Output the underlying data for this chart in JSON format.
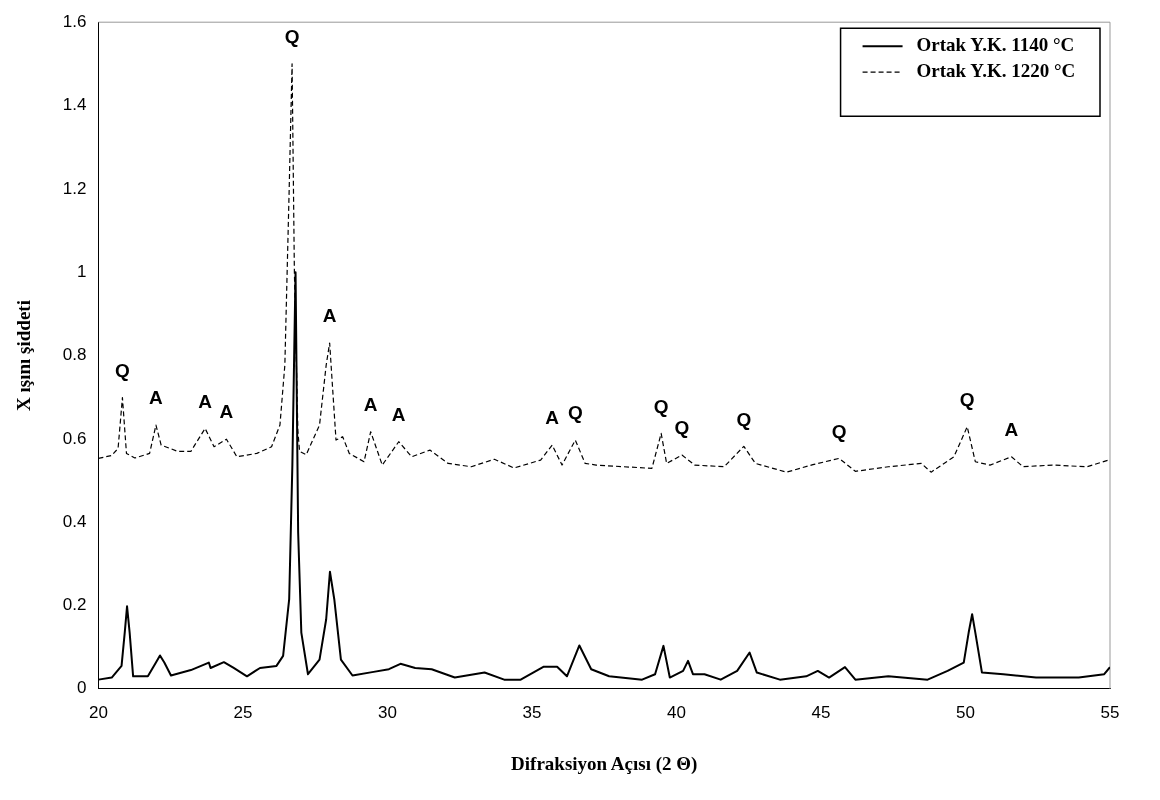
{
  "chart_data": {
    "type": "line",
    "xlabel": "Difraksiyon Açısı (2 Θ)",
    "ylabel": "X ışını şiddeti",
    "xlim": [
      20,
      55
    ],
    "xticks": [
      20,
      25,
      30,
      35,
      40,
      45,
      50,
      55
    ],
    "ylim": [
      0,
      1.6
    ],
    "yticks": [
      0,
      0.2,
      0.4,
      0.6,
      0.8,
      1,
      1.2,
      1.4,
      1.6
    ],
    "grid": false,
    "legend": "top right",
    "marker": "none",
    "series": [
      {
        "name": "Ortak Y.K. 1140 °C",
        "color": "#000000",
        "line_style": "solid",
        "x": [
          20.0,
          20.46,
          20.8,
          20.91,
          20.99,
          21.08,
          21.2,
          21.71,
          21.99,
          22.13,
          22.28,
          22.51,
          23.2,
          23.82,
          23.88,
          24.34,
          24.68,
          25.14,
          25.59,
          26.16,
          26.39,
          26.6,
          26.71,
          26.82,
          26.91,
          27.02,
          27.25,
          27.65,
          27.88,
          28.01,
          28.16,
          28.39,
          28.79,
          29.47,
          30.05,
          30.45,
          30.96,
          31.53,
          32.33,
          33.36,
          34.04,
          34.61,
          35.41,
          35.87,
          36.21,
          36.64,
          37.05,
          37.67,
          38.81,
          39.26,
          39.55,
          39.77,
          40.23,
          40.4,
          40.57,
          40.97,
          41.53,
          42.1,
          42.53,
          42.78,
          43.58,
          44.49,
          44.89,
          45.28,
          45.83,
          46.19,
          47.33,
          48.69,
          49.38,
          49.94,
          50.11,
          50.23,
          50.34,
          50.57,
          51.31,
          52.44,
          53.35,
          53.92,
          54.8,
          55.0
        ],
        "values": [
          0.022,
          0.027,
          0.055,
          0.135,
          0.198,
          0.135,
          0.03,
          0.03,
          0.063,
          0.08,
          0.063,
          0.032,
          0.045,
          0.063,
          0.05,
          0.064,
          0.05,
          0.03,
          0.05,
          0.055,
          0.079,
          0.215,
          0.537,
          1.0,
          0.376,
          0.135,
          0.035,
          0.07,
          0.167,
          0.281,
          0.215,
          0.07,
          0.032,
          0.04,
          0.047,
          0.06,
          0.05,
          0.047,
          0.027,
          0.039,
          0.022,
          0.022,
          0.053,
          0.053,
          0.03,
          0.104,
          0.047,
          0.03,
          0.022,
          0.035,
          0.103,
          0.027,
          0.043,
          0.067,
          0.035,
          0.035,
          0.022,
          0.043,
          0.087,
          0.039,
          0.022,
          0.03,
          0.043,
          0.027,
          0.052,
          0.022,
          0.03,
          0.022,
          0.043,
          0.063,
          0.135,
          0.179,
          0.135,
          0.039,
          0.035,
          0.027,
          0.027,
          0.027,
          0.035,
          0.052
        ]
      },
      {
        "name": "Ortak Y.K. 1220 °C",
        "color": "#000000",
        "line_style": "dashed",
        "x": [
          20.0,
          20.46,
          20.68,
          20.83,
          20.97,
          21.26,
          21.77,
          21.99,
          22.17,
          22.74,
          23.2,
          23.69,
          24.0,
          24.43,
          24.79,
          25.48,
          25.99,
          26.28,
          26.45,
          26.6,
          26.7,
          26.78,
          26.9,
          26.96,
          27.19,
          27.65,
          27.88,
          28.0,
          28.22,
          28.45,
          28.68,
          29.19,
          29.42,
          29.82,
          30.39,
          30.84,
          31.47,
          32.1,
          32.9,
          33.7,
          34.38,
          35.3,
          35.7,
          36.04,
          36.5,
          36.84,
          37.22,
          39.15,
          39.47,
          39.66,
          40.19,
          40.63,
          41.65,
          42.33,
          42.73,
          43.81,
          44.72,
          45.63,
          46.19,
          47.33,
          48.47,
          48.81,
          49.6,
          50.06,
          50.34,
          50.85,
          51.59,
          51.99,
          53.01,
          54.2,
          55.0
        ],
        "values": [
          0.553,
          0.56,
          0.577,
          0.699,
          0.565,
          0.554,
          0.565,
          0.633,
          0.585,
          0.57,
          0.57,
          0.625,
          0.581,
          0.599,
          0.557,
          0.565,
          0.581,
          0.633,
          0.777,
          1.2,
          1.5,
          1.0,
          0.62,
          0.57,
          0.562,
          0.633,
          0.777,
          0.83,
          0.597,
          0.605,
          0.565,
          0.545,
          0.617,
          0.537,
          0.593,
          0.557,
          0.573,
          0.541,
          0.533,
          0.551,
          0.53,
          0.549,
          0.585,
          0.537,
          0.597,
          0.541,
          0.537,
          0.529,
          0.613,
          0.541,
          0.561,
          0.537,
          0.533,
          0.582,
          0.541,
          0.52,
          0.538,
          0.553,
          0.522,
          0.533,
          0.541,
          0.52,
          0.557,
          0.629,
          0.545,
          0.537,
          0.557,
          0.533,
          0.537,
          0.533,
          0.55
        ]
      }
    ],
    "annotations": [
      {
        "text": "Q",
        "x": 20.83,
        "y": 0.699
      },
      {
        "text": "A",
        "x": 21.99,
        "y": 0.633
      },
      {
        "text": "A",
        "x": 23.69,
        "y": 0.625
      },
      {
        "text": "A",
        "x": 24.43,
        "y": 0.599
      },
      {
        "text": "Q",
        "x": 26.7,
        "y": 1.5
      },
      {
        "text": "A",
        "x": 28.0,
        "y": 0.83
      },
      {
        "text": "A",
        "x": 29.42,
        "y": 0.617
      },
      {
        "text": "A",
        "x": 30.39,
        "y": 0.593
      },
      {
        "text": "A",
        "x": 35.7,
        "y": 0.585
      },
      {
        "text": "Q",
        "x": 36.5,
        "y": 0.597
      },
      {
        "text": "Q",
        "x": 39.47,
        "y": 0.613
      },
      {
        "text": "Q",
        "x": 40.19,
        "y": 0.561
      },
      {
        "text": "Q",
        "x": 42.33,
        "y": 0.582
      },
      {
        "text": "Q",
        "x": 45.63,
        "y": 0.553
      },
      {
        "text": "Q",
        "x": 50.06,
        "y": 0.629
      },
      {
        "text": "A",
        "x": 51.59,
        "y": 0.557
      }
    ]
  }
}
